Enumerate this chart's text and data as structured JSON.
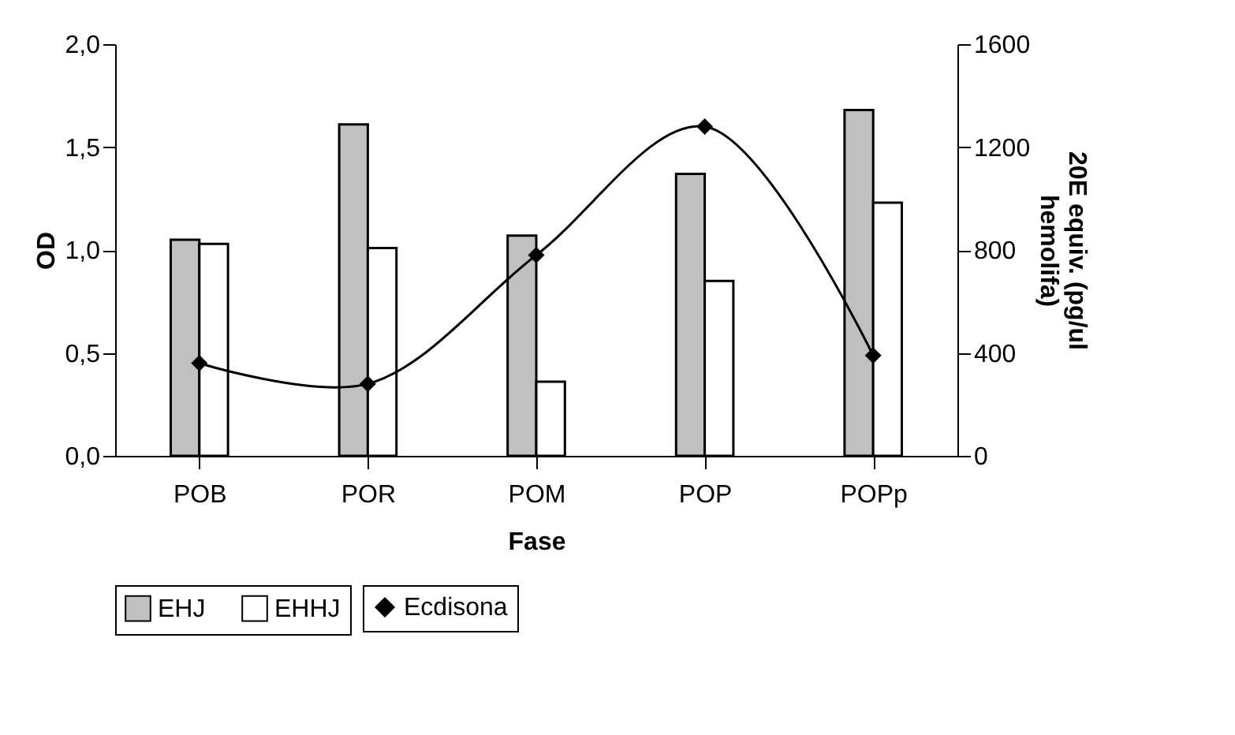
{
  "chart_data": {
    "type": "bar",
    "xlabel": "Fase",
    "ylabel": "OD",
    "y2label": "20E equiv. (pg/ul hemolifa)",
    "categories": [
      "POB",
      "POR",
      "POM",
      "POP",
      "POPp"
    ],
    "series": [
      {
        "name": "EHJ",
        "color": "#c0c0c0",
        "values": [
          1.05,
          1.61,
          1.07,
          1.37,
          1.68
        ]
      },
      {
        "name": "EHHJ",
        "color": "#ffffff",
        "values": [
          1.03,
          1.01,
          0.36,
          0.85,
          1.23
        ]
      },
      {
        "name": "Ecdisona",
        "type": "line",
        "axis": "y2",
        "color": "#000000",
        "marker": "diamond",
        "values": [
          360,
          280,
          780,
          1280,
          390
        ]
      }
    ],
    "ylim": [
      0,
      2.0
    ],
    "yticks": [
      {
        "value": 0,
        "label": "0,0"
      },
      {
        "value": 0.5,
        "label": "0,5"
      },
      {
        "value": 1.0,
        "label": "1,0"
      },
      {
        "value": 1.5,
        "label": "1,5"
      },
      {
        "value": 2.0,
        "label": "2,0"
      }
    ],
    "y2lim": [
      0,
      1600
    ],
    "y2ticks": [
      0,
      400,
      800,
      1200,
      1600
    ],
    "legend": "bottom",
    "grid": false
  }
}
